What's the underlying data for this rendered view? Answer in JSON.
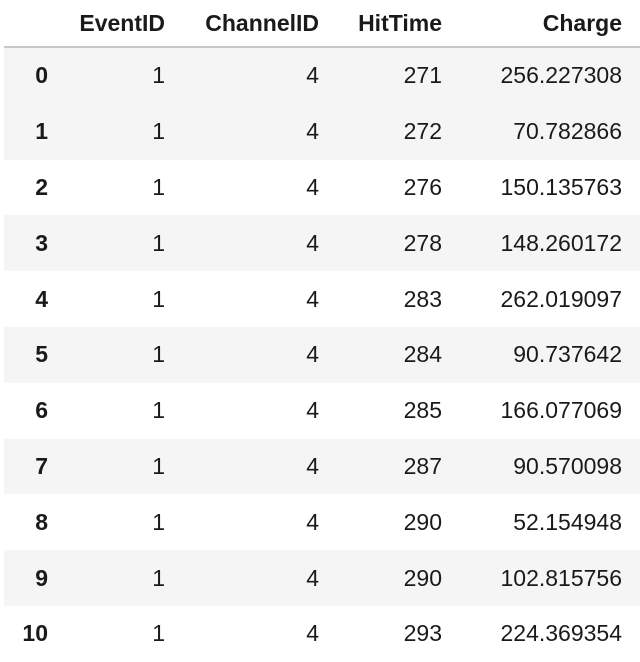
{
  "table": {
    "columns": [
      "",
      "EventID",
      "ChannelID",
      "HitTime",
      "Charge"
    ],
    "rows": [
      {
        "index": "0",
        "EventID": "1",
        "ChannelID": "4",
        "HitTime": "271",
        "Charge": "256.227308"
      },
      {
        "index": "1",
        "EventID": "1",
        "ChannelID": "4",
        "HitTime": "272",
        "Charge": "70.782866"
      },
      {
        "index": "2",
        "EventID": "1",
        "ChannelID": "4",
        "HitTime": "276",
        "Charge": "150.135763"
      },
      {
        "index": "3",
        "EventID": "1",
        "ChannelID": "4",
        "HitTime": "278",
        "Charge": "148.260172"
      },
      {
        "index": "4",
        "EventID": "1",
        "ChannelID": "4",
        "HitTime": "283",
        "Charge": "262.019097"
      },
      {
        "index": "5",
        "EventID": "1",
        "ChannelID": "4",
        "HitTime": "284",
        "Charge": "90.737642"
      },
      {
        "index": "6",
        "EventID": "1",
        "ChannelID": "4",
        "HitTime": "285",
        "Charge": "166.077069"
      },
      {
        "index": "7",
        "EventID": "1",
        "ChannelID": "4",
        "HitTime": "287",
        "Charge": "90.570098"
      },
      {
        "index": "8",
        "EventID": "1",
        "ChannelID": "4",
        "HitTime": "290",
        "Charge": "52.154948"
      },
      {
        "index": "9",
        "EventID": "1",
        "ChannelID": "4",
        "HitTime": "290",
        "Charge": "102.815756"
      },
      {
        "index": "10",
        "EventID": "1",
        "ChannelID": "4",
        "HitTime": "293",
        "Charge": "224.369354"
      }
    ]
  },
  "colors": {
    "stripe": "#f5f5f5",
    "header_rule": "#c8c8c8",
    "text": "#1a1a1a"
  }
}
